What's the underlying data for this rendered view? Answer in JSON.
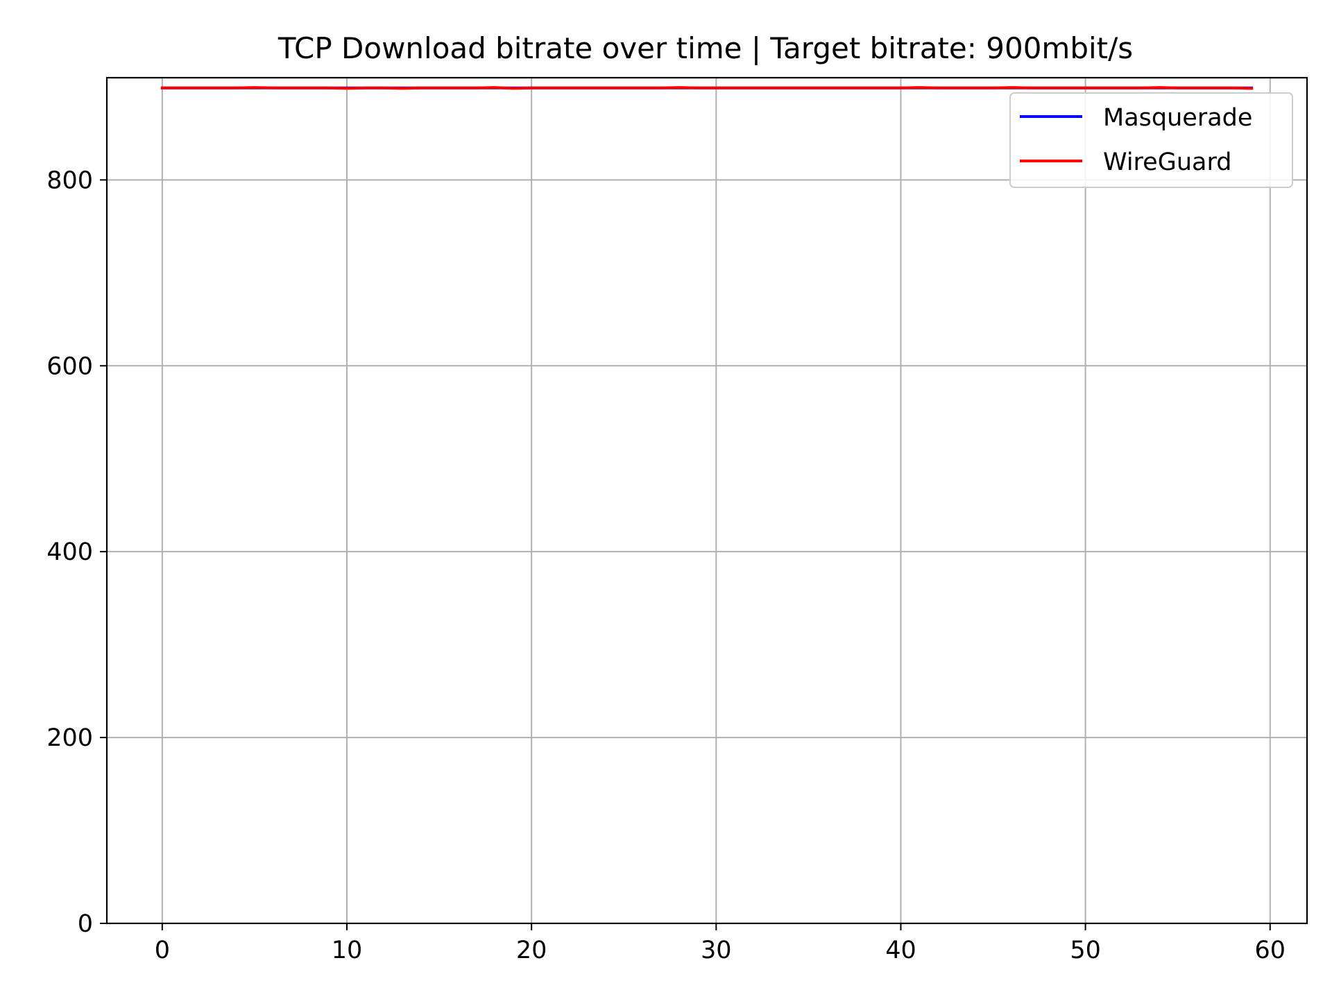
{
  "chart_data": {
    "type": "line",
    "title": "TCP Download bitrate over time | Target bitrate: 900mbit/s",
    "xlabel": "",
    "ylabel": "",
    "xlim": [
      -3,
      62
    ],
    "ylim": [
      0,
      910
    ],
    "xticks": [
      0,
      10,
      20,
      30,
      40,
      50,
      60
    ],
    "xtick_labels": [
      "0",
      "10",
      "20",
      "30",
      "40",
      "50",
      "60"
    ],
    "yticks": [
      0,
      200,
      400,
      600,
      800
    ],
    "ytick_labels": [
      "0",
      "200",
      "400",
      "600",
      "800"
    ],
    "grid": true,
    "legend_position": "top-right",
    "x": [
      0,
      1,
      2,
      3,
      4,
      5,
      6,
      7,
      8,
      9,
      10,
      11,
      12,
      13,
      14,
      15,
      16,
      17,
      18,
      19,
      20,
      21,
      22,
      23,
      24,
      25,
      26,
      27,
      28,
      29,
      30,
      31,
      32,
      33,
      34,
      35,
      36,
      37,
      38,
      39,
      40,
      41,
      42,
      43,
      44,
      45,
      46,
      47,
      48,
      49,
      50,
      51,
      52,
      53,
      54,
      55,
      56,
      57,
      58,
      59
    ],
    "series": [
      {
        "name": "Masquerade",
        "color": "#0000ff",
        "values": [
          899,
          899,
          899,
          899,
          899,
          899,
          899,
          899,
          899,
          899,
          899,
          899,
          899,
          899,
          899,
          899,
          899,
          899,
          899,
          899,
          899,
          899,
          899,
          899,
          899,
          899,
          899,
          899,
          899,
          899,
          899,
          899,
          899,
          899,
          899,
          899,
          899,
          899,
          899,
          899,
          899,
          899,
          899,
          899,
          899,
          899,
          899,
          899,
          899,
          899,
          899,
          899,
          899,
          899,
          899,
          899,
          899,
          899,
          899,
          899
        ]
      },
      {
        "name": "WireGuard",
        "color": "#ff0000",
        "values": [
          899,
          899,
          899,
          899,
          899,
          899.5,
          899,
          899,
          899,
          899,
          898.5,
          899,
          899,
          898.5,
          899,
          899,
          899,
          899,
          899.5,
          898.5,
          899,
          899,
          899,
          899,
          899,
          899,
          899,
          899,
          899.5,
          899,
          899,
          899,
          899,
          899,
          899,
          899,
          899,
          899,
          899,
          899,
          899,
          899.5,
          899,
          899,
          899,
          899,
          899.5,
          899,
          899,
          899,
          899,
          899,
          899,
          899,
          899.5,
          899,
          899,
          899,
          899,
          898.5
        ]
      }
    ]
  }
}
